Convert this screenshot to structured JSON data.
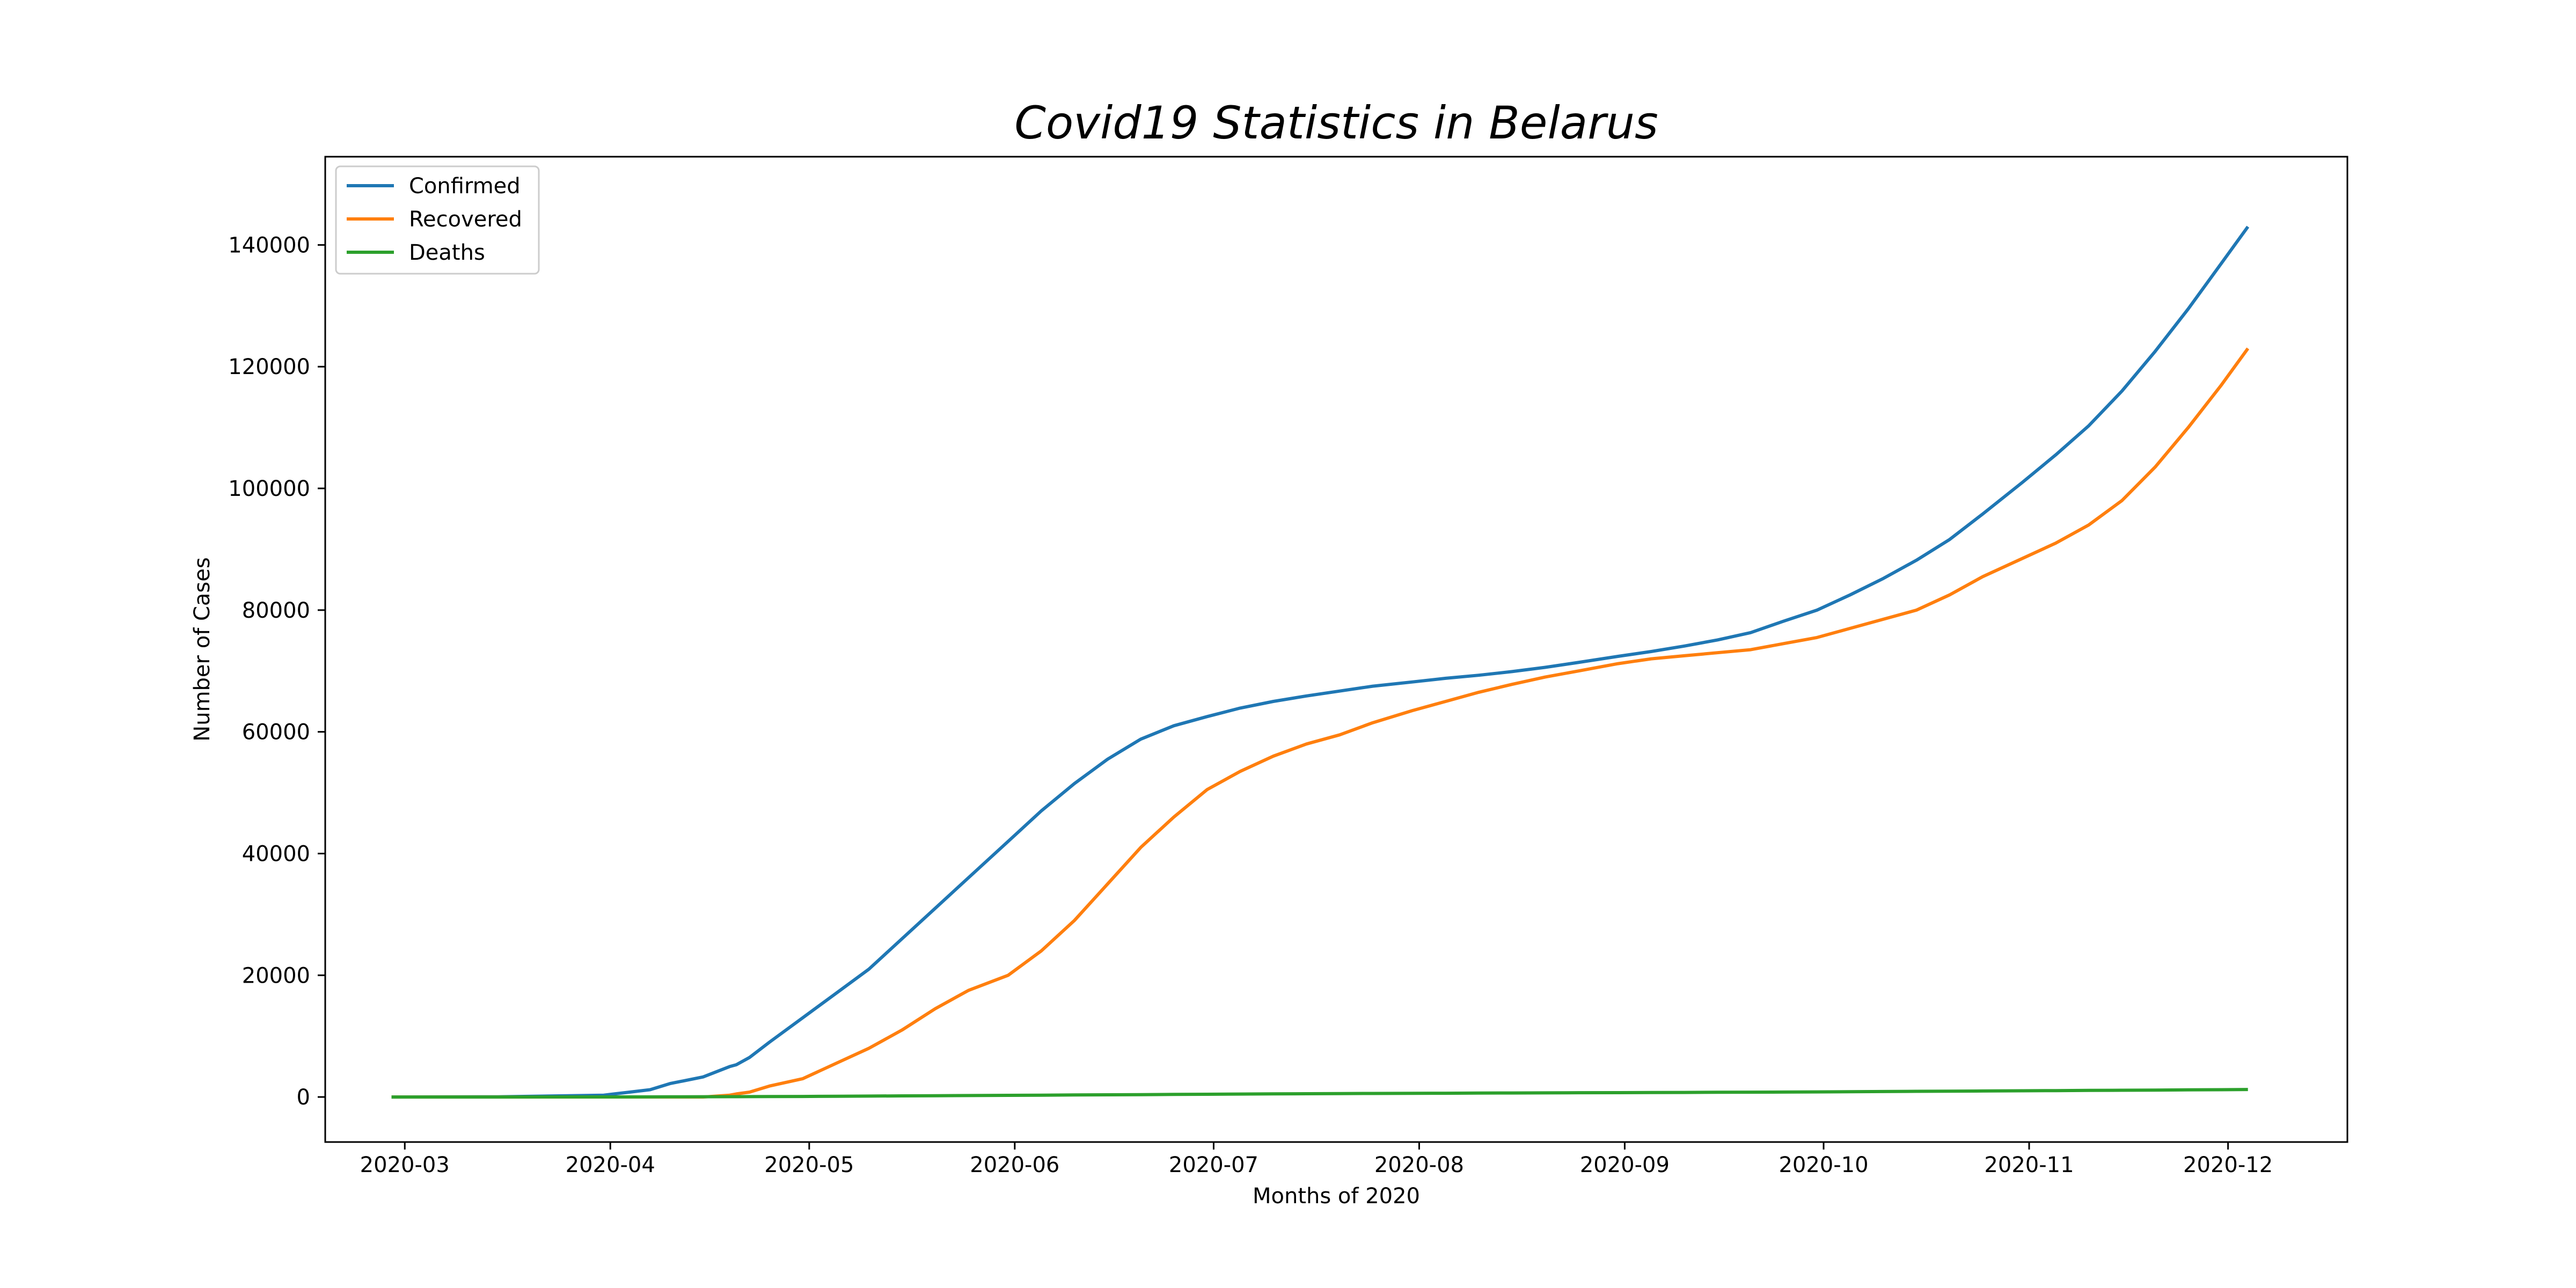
{
  "chart_data": {
    "type": "line",
    "title": "Covid19 Statistics in Belarus",
    "xlabel": "Months of 2020",
    "ylabel": "Number of Cases",
    "x_ticks": [
      "2020-03",
      "2020-04",
      "2020-05",
      "2020-06",
      "2020-07",
      "2020-08",
      "2020-09",
      "2020-10",
      "2020-11",
      "2020-12"
    ],
    "y_ticks": [
      0,
      20000,
      40000,
      60000,
      80000,
      100000,
      120000,
      140000
    ],
    "xlim": [
      "2020-02-18",
      "2020-12-19"
    ],
    "ylim": [
      -7400,
      154500
    ],
    "grid": false,
    "legend_position": "top-left",
    "x": [
      "2020-02-28",
      "2020-03-15",
      "2020-03-31",
      "2020-04-07",
      "2020-04-10",
      "2020-04-15",
      "2020-04-19",
      "2020-04-20",
      "2020-04-22",
      "2020-04-25",
      "2020-04-30",
      "2020-05-05",
      "2020-05-10",
      "2020-05-15",
      "2020-05-20",
      "2020-05-25",
      "2020-05-31",
      "2020-06-05",
      "2020-06-10",
      "2020-06-15",
      "2020-06-20",
      "2020-06-25",
      "2020-06-30",
      "2020-07-05",
      "2020-07-10",
      "2020-07-15",
      "2020-07-20",
      "2020-07-25",
      "2020-07-31",
      "2020-08-05",
      "2020-08-10",
      "2020-08-15",
      "2020-08-20",
      "2020-08-25",
      "2020-08-31",
      "2020-09-05",
      "2020-09-10",
      "2020-09-15",
      "2020-09-20",
      "2020-09-25",
      "2020-09-30",
      "2020-10-05",
      "2020-10-10",
      "2020-10-15",
      "2020-10-20",
      "2020-10-25",
      "2020-10-31",
      "2020-11-05",
      "2020-11-10",
      "2020-11-15",
      "2020-11-20",
      "2020-11-25",
      "2020-11-30",
      "2020-12-04"
    ],
    "series": [
      {
        "name": "Confirmed",
        "color": "#1f77b4",
        "values": [
          1,
          30,
          300,
          1200,
          2200,
          3300,
          5000,
          5300,
          6500,
          9000,
          13000,
          17000,
          21000,
          26000,
          31000,
          36000,
          42000,
          47000,
          51500,
          55500,
          58800,
          61000,
          62500,
          63900,
          65000,
          65900,
          66700,
          67500,
          68200,
          68800,
          69300,
          69900,
          70600,
          71400,
          72400,
          73200,
          74100,
          75100,
          76300,
          78200,
          80000,
          82500,
          85200,
          88200,
          91600,
          95800,
          101000,
          105500,
          110300,
          116000,
          122500,
          129500,
          137000,
          143000
        ]
      },
      {
        "name": "Recovered",
        "color": "#ff7f0e",
        "values": [
          0,
          0,
          0,
          0,
          0,
          0,
          300,
          500,
          800,
          1800,
          3000,
          5500,
          8000,
          11000,
          14500,
          17500,
          20000,
          24000,
          29000,
          35000,
          41000,
          46000,
          50500,
          53500,
          56000,
          58000,
          59500,
          61500,
          63500,
          65000,
          66500,
          67800,
          69000,
          70000,
          71200,
          72000,
          72500,
          73000,
          73500,
          74500,
          75500,
          77000,
          78500,
          80000,
          82500,
          85500,
          88500,
          91000,
          94000,
          98000,
          103500,
          110000,
          117000,
          123000
        ]
      },
      {
        "name": "Deaths",
        "color": "#2ca02c",
        "values": [
          0,
          0,
          5,
          15,
          25,
          40,
          50,
          55,
          60,
          70,
          90,
          120,
          150,
          180,
          210,
          240,
          270,
          300,
          330,
          360,
          390,
          420,
          450,
          480,
          510,
          540,
          560,
          580,
          600,
          620,
          640,
          660,
          680,
          700,
          710,
          730,
          750,
          770,
          790,
          810,
          840,
          870,
          900,
          930,
          960,
          990,
          1020,
          1050,
          1080,
          1110,
          1140,
          1170,
          1200,
          1230
        ]
      }
    ]
  }
}
